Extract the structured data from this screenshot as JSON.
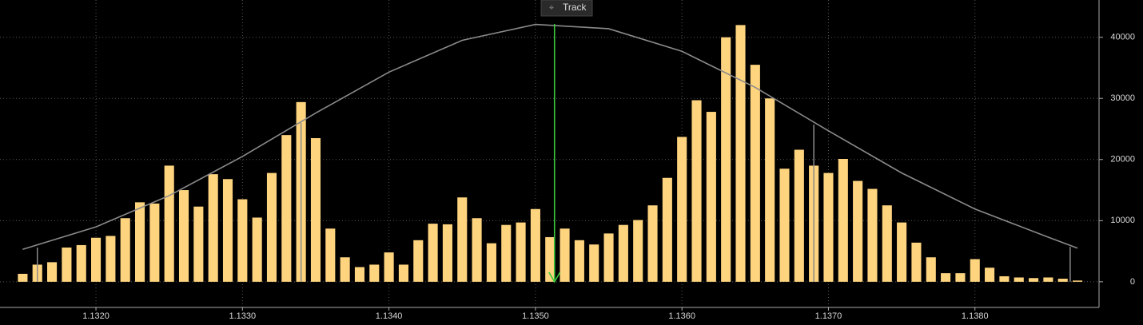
{
  "chart_data": {
    "type": "bar",
    "button": "Track",
    "x": [
      1.1315,
      1.1316,
      1.1317,
      1.1318,
      1.1319,
      1.132,
      1.1321,
      1.1322,
      1.1323,
      1.1324,
      1.1325,
      1.1326,
      1.1327,
      1.1328,
      1.1329,
      1.133,
      1.1331,
      1.1332,
      1.1333,
      1.1334,
      1.1335,
      1.1336,
      1.1337,
      1.1338,
      1.1339,
      1.134,
      1.1341,
      1.1342,
      1.1343,
      1.1344,
      1.1345,
      1.1346,
      1.1347,
      1.1348,
      1.1349,
      1.135,
      1.1351,
      1.1352,
      1.1353,
      1.1354,
      1.1355,
      1.1356,
      1.1357,
      1.1358,
      1.1359,
      1.136,
      1.1361,
      1.1362,
      1.1363,
      1.1364,
      1.1365,
      1.1366,
      1.1367,
      1.1368,
      1.1369,
      1.137,
      1.1371,
      1.1372,
      1.1373,
      1.1374,
      1.1375,
      1.1376,
      1.1377,
      1.1378,
      1.1379,
      1.138,
      1.1381,
      1.1382,
      1.1383,
      1.1384,
      1.1385,
      1.1386,
      1.1387
    ],
    "values": [
      1300,
      2800,
      3200,
      5600,
      6000,
      7200,
      7500,
      10400,
      13000,
      12800,
      19000,
      15000,
      12300,
      17600,
      16800,
      13500,
      10500,
      17800,
      24000,
      29400,
      23500,
      8700,
      4000,
      2400,
      2800,
      4800,
      2800,
      6800,
      9500,
      9400,
      13800,
      10400,
      6300,
      9300,
      9700,
      11900,
      7300,
      8700,
      6800,
      6100,
      7900,
      9300,
      10100,
      12500,
      17000,
      23700,
      29700,
      27800,
      40000,
      42000,
      35500,
      30000,
      18500,
      21600,
      19000,
      17800,
      20100,
      16500,
      15200,
      12500,
      9700,
      6400,
      4000,
      1400,
      1400,
      3700,
      2300,
      900,
      700,
      600,
      700,
      500,
      200
    ],
    "color": "#ffd47f",
    "curve": {
      "color": "#8a8a8a",
      "x": [
        1.1315,
        1.132,
        1.1325,
        1.133,
        1.1335,
        1.134,
        1.1345,
        1.135,
        1.1355,
        1.136,
        1.1365,
        1.137,
        1.1375,
        1.138,
        1.1385,
        1.1387
      ],
      "values": [
        5300,
        8980,
        14100,
        20500,
        27600,
        34300,
        39500,
        42100,
        41400,
        37700,
        31800,
        24700,
        17800,
        11900,
        7300,
        5500
      ]
    },
    "reference_lines": [
      {
        "x": 1.1316,
        "y": 5600
      },
      {
        "x": 1.1334,
        "y": 26000
      },
      {
        "x": 1.1369,
        "y": 25700
      },
      {
        "x": 1.13865,
        "y": 5700
      }
    ],
    "reference_color": "#8a8a8a",
    "track_x": 1.13513,
    "track_color": "#3cc83c",
    "xlim": [
      1.131345,
      1.138847
    ],
    "ylim": [
      -4200,
      46100
    ],
    "xticks": [
      {
        "value": 1.132,
        "label": "1.1320"
      },
      {
        "value": 1.133,
        "label": "1.1330"
      },
      {
        "value": 1.134,
        "label": "1.1340"
      },
      {
        "value": 1.135,
        "label": "1.1350"
      },
      {
        "value": 1.136,
        "label": "1.1360"
      },
      {
        "value": 1.137,
        "label": "1.1370"
      },
      {
        "value": 1.138,
        "label": "1.1380"
      }
    ],
    "yticks": [
      0,
      10000,
      20000,
      30000,
      40000
    ],
    "grid": true
  }
}
